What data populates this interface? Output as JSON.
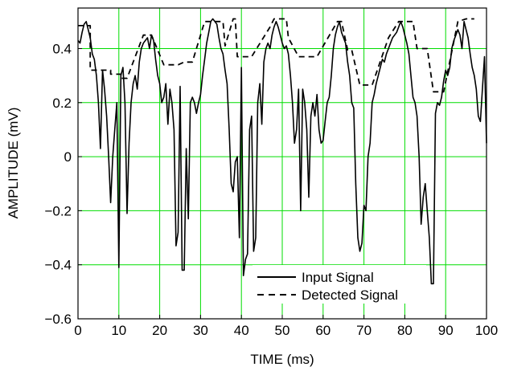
{
  "chart_data": {
    "type": "line",
    "xlabel": "TIME (ms)",
    "ylabel": "AMPLITUDE (mV)",
    "xlim": [
      0,
      100
    ],
    "ylim": [
      -0.6,
      0.55
    ],
    "x_ticks": [
      0,
      10,
      20,
      30,
      40,
      50,
      60,
      70,
      80,
      90,
      100
    ],
    "x_tick_labels": [
      "0",
      "10",
      "20",
      "30",
      "40",
      "50",
      "60",
      "70",
      "80",
      "90",
      "100"
    ],
    "y_ticks": [
      -0.6,
      -0.4,
      -0.2,
      0,
      0.2,
      0.4
    ],
    "y_tick_labels": [
      "−0.6",
      "−0.4",
      "−0.2",
      "0",
      "0.2",
      "0.4"
    ],
    "grid": true,
    "grid_color": "#00dd00",
    "legend_position": "bottom-right",
    "series": [
      {
        "name": "Input Signal",
        "style": "solid",
        "color": "#000000",
        "points": [
          [
            0,
            0.43
          ],
          [
            0.5,
            0.42
          ],
          [
            1,
            0.46
          ],
          [
            1.5,
            0.49
          ],
          [
            2,
            0.5
          ],
          [
            2.5,
            0.47
          ],
          [
            3,
            0.44
          ],
          [
            3.5,
            0.38
          ],
          [
            4,
            0.36
          ],
          [
            4.5,
            0.3
          ],
          [
            5,
            0.2
          ],
          [
            5.5,
            0.03
          ],
          [
            6,
            0.32
          ],
          [
            6.5,
            0.25
          ],
          [
            7,
            0.15
          ],
          [
            7.5,
            0.0
          ],
          [
            8,
            -0.17
          ],
          [
            8.5,
            0.0
          ],
          [
            9,
            0.1
          ],
          [
            9.5,
            0.2
          ],
          [
            10,
            -0.41
          ],
          [
            10.5,
            0.3
          ],
          [
            11,
            0.33
          ],
          [
            11.5,
            0.2
          ],
          [
            12,
            -0.21
          ],
          [
            12.5,
            0.05
          ],
          [
            13,
            0.2
          ],
          [
            13.5,
            0.27
          ],
          [
            14,
            0.3
          ],
          [
            14.5,
            0.25
          ],
          [
            15,
            0.35
          ],
          [
            15.5,
            0.4
          ],
          [
            16,
            0.42
          ],
          [
            16.5,
            0.43
          ],
          [
            17,
            0.44
          ],
          [
            17.5,
            0.4
          ],
          [
            18,
            0.45
          ],
          [
            18.5,
            0.43
          ],
          [
            19,
            0.36
          ],
          [
            19.5,
            0.3
          ],
          [
            20,
            0.27
          ],
          [
            20.5,
            0.2
          ],
          [
            21,
            0.22
          ],
          [
            21.5,
            0.27
          ],
          [
            22,
            0.12
          ],
          [
            22.5,
            0.25
          ],
          [
            23,
            0.2
          ],
          [
            23.5,
            0.1
          ],
          [
            24,
            -0.33
          ],
          [
            24.5,
            -0.28
          ],
          [
            25,
            0.26
          ],
          [
            25.5,
            -0.42
          ],
          [
            26,
            -0.42
          ],
          [
            26.5,
            0.03
          ],
          [
            27,
            -0.23
          ],
          [
            27.5,
            0.2
          ],
          [
            28,
            0.22
          ],
          [
            28.5,
            0.2
          ],
          [
            29,
            0.16
          ],
          [
            29.5,
            0.2
          ],
          [
            30,
            0.23
          ],
          [
            30.5,
            0.3
          ],
          [
            31,
            0.36
          ],
          [
            31.5,
            0.42
          ],
          [
            32,
            0.46
          ],
          [
            32.5,
            0.5
          ],
          [
            33,
            0.51
          ],
          [
            33.5,
            0.5
          ],
          [
            34,
            0.49
          ],
          [
            34.5,
            0.44
          ],
          [
            35,
            0.4
          ],
          [
            35.5,
            0.38
          ],
          [
            36,
            0.32
          ],
          [
            36.5,
            0.27
          ],
          [
            37,
            0.1
          ],
          [
            37.5,
            -0.1
          ],
          [
            38,
            -0.13
          ],
          [
            38.5,
            -0.02
          ],
          [
            39,
            0.0
          ],
          [
            39.5,
            -0.3
          ],
          [
            40,
            0.33
          ],
          [
            40.5,
            -0.44
          ],
          [
            41,
            -0.38
          ],
          [
            41.5,
            -0.36
          ],
          [
            42,
            0.1
          ],
          [
            42.5,
            0.15
          ],
          [
            43,
            -0.35
          ],
          [
            43.5,
            -0.3
          ],
          [
            44,
            0.2
          ],
          [
            44.5,
            0.27
          ],
          [
            45,
            0.12
          ],
          [
            45.5,
            0.35
          ],
          [
            46,
            0.4
          ],
          [
            46.5,
            0.42
          ],
          [
            47,
            0.4
          ],
          [
            47.5,
            0.45
          ],
          [
            48,
            0.48
          ],
          [
            48.5,
            0.5
          ],
          [
            49,
            0.48
          ],
          [
            49.5,
            0.45
          ],
          [
            50,
            0.42
          ],
          [
            50.5,
            0.4
          ],
          [
            51,
            0.41
          ],
          [
            51.5,
            0.38
          ],
          [
            52,
            0.3
          ],
          [
            52.5,
            0.2
          ],
          [
            53,
            0.05
          ],
          [
            53.5,
            0.1
          ],
          [
            54,
            0.25
          ],
          [
            54.5,
            -0.2
          ],
          [
            55,
            0.25
          ],
          [
            55.5,
            0.2
          ],
          [
            56,
            0.1
          ],
          [
            56.5,
            -0.15
          ],
          [
            57,
            0.15
          ],
          [
            57.5,
            0.2
          ],
          [
            58,
            0.15
          ],
          [
            58.5,
            0.23
          ],
          [
            59,
            0.1
          ],
          [
            59.5,
            0.05
          ],
          [
            60,
            0.06
          ],
          [
            60.5,
            0.13
          ],
          [
            61,
            0.2
          ],
          [
            61.5,
            0.22
          ],
          [
            62,
            0.3
          ],
          [
            62.5,
            0.4
          ],
          [
            63,
            0.45
          ],
          [
            63.5,
            0.48
          ],
          [
            64,
            0.5
          ],
          [
            64.5,
            0.46
          ],
          [
            65,
            0.44
          ],
          [
            65.5,
            0.42
          ],
          [
            66,
            0.35
          ],
          [
            66.5,
            0.3
          ],
          [
            67,
            0.2
          ],
          [
            67.5,
            0.18
          ],
          [
            68,
            -0.1
          ],
          [
            68.5,
            -0.3
          ],
          [
            69,
            -0.35
          ],
          [
            69.5,
            -0.32
          ],
          [
            70,
            -0.18
          ],
          [
            70.5,
            -0.2
          ],
          [
            71,
            0.0
          ],
          [
            71.5,
            0.05
          ],
          [
            72,
            0.2
          ],
          [
            72.5,
            0.23
          ],
          [
            73,
            0.27
          ],
          [
            73.5,
            0.3
          ],
          [
            74,
            0.33
          ],
          [
            74.5,
            0.36
          ],
          [
            75,
            0.35
          ],
          [
            75.5,
            0.38
          ],
          [
            76,
            0.4
          ],
          [
            76.5,
            0.42
          ],
          [
            77,
            0.44
          ],
          [
            77.5,
            0.45
          ],
          [
            78,
            0.46
          ],
          [
            78.5,
            0.48
          ],
          [
            79,
            0.5
          ],
          [
            79.5,
            0.48
          ],
          [
            80,
            0.45
          ],
          [
            80.5,
            0.42
          ],
          [
            81,
            0.38
          ],
          [
            81.5,
            0.3
          ],
          [
            82,
            0.22
          ],
          [
            82.5,
            0.2
          ],
          [
            83,
            0.15
          ],
          [
            83.5,
            0.0
          ],
          [
            84,
            -0.25
          ],
          [
            84.5,
            -0.15
          ],
          [
            85,
            -0.1
          ],
          [
            85.5,
            -0.2
          ],
          [
            86,
            -0.3
          ],
          [
            86.5,
            -0.47
          ],
          [
            87,
            -0.47
          ],
          [
            87.5,
            0.16
          ],
          [
            88,
            0.2
          ],
          [
            88.5,
            0.19
          ],
          [
            89,
            0.22
          ],
          [
            89.5,
            0.28
          ],
          [
            90,
            0.32
          ],
          [
            90.5,
            0.3
          ],
          [
            91,
            0.33
          ],
          [
            91.5,
            0.4
          ],
          [
            92,
            0.43
          ],
          [
            92.5,
            0.45
          ],
          [
            93,
            0.47
          ],
          [
            93.5,
            0.45
          ],
          [
            94,
            0.4
          ],
          [
            94.5,
            0.5
          ],
          [
            95,
            0.47
          ],
          [
            95.5,
            0.44
          ],
          [
            96,
            0.38
          ],
          [
            96.5,
            0.33
          ],
          [
            97,
            0.3
          ],
          [
            97.5,
            0.25
          ],
          [
            98,
            0.15
          ],
          [
            98.5,
            0.13
          ],
          [
            99,
            0.25
          ],
          [
            99.5,
            0.37
          ],
          [
            100,
            0.05
          ]
        ]
      },
      {
        "name": "Detected Signal",
        "style": "dashed",
        "color": "#000000",
        "points": [
          [
            0,
            0.485
          ],
          [
            3,
            0.485
          ],
          [
            3,
            0.32
          ],
          [
            8,
            0.32
          ],
          [
            8,
            0.305
          ],
          [
            10.5,
            0.305
          ],
          [
            10.5,
            0.29
          ],
          [
            12,
            0.29
          ],
          [
            16,
            0.45
          ],
          [
            18,
            0.45
          ],
          [
            21,
            0.34
          ],
          [
            24.5,
            0.34
          ],
          [
            26,
            0.35
          ],
          [
            28,
            0.35
          ],
          [
            31,
            0.5
          ],
          [
            32,
            0.5
          ],
          [
            35.5,
            0.5
          ],
          [
            36,
            0.41
          ],
          [
            38,
            0.51
          ],
          [
            38.5,
            0.51
          ],
          [
            39,
            0.37
          ],
          [
            42.5,
            0.37
          ],
          [
            47,
            0.48
          ],
          [
            48,
            0.51
          ],
          [
            51,
            0.51
          ],
          [
            51.5,
            0.44
          ],
          [
            54,
            0.37
          ],
          [
            58.5,
            0.37
          ],
          [
            63.5,
            0.5
          ],
          [
            64.5,
            0.5
          ],
          [
            66,
            0.395
          ],
          [
            67,
            0.395
          ],
          [
            69,
            0.265
          ],
          [
            72,
            0.265
          ],
          [
            76,
            0.44
          ],
          [
            78.5,
            0.5
          ],
          [
            82,
            0.5
          ],
          [
            83,
            0.4
          ],
          [
            85.5,
            0.4
          ],
          [
            87,
            0.24
          ],
          [
            89.5,
            0.24
          ],
          [
            93,
            0.5
          ],
          [
            95,
            0.51
          ],
          [
            97,
            0.51
          ]
        ]
      }
    ]
  }
}
